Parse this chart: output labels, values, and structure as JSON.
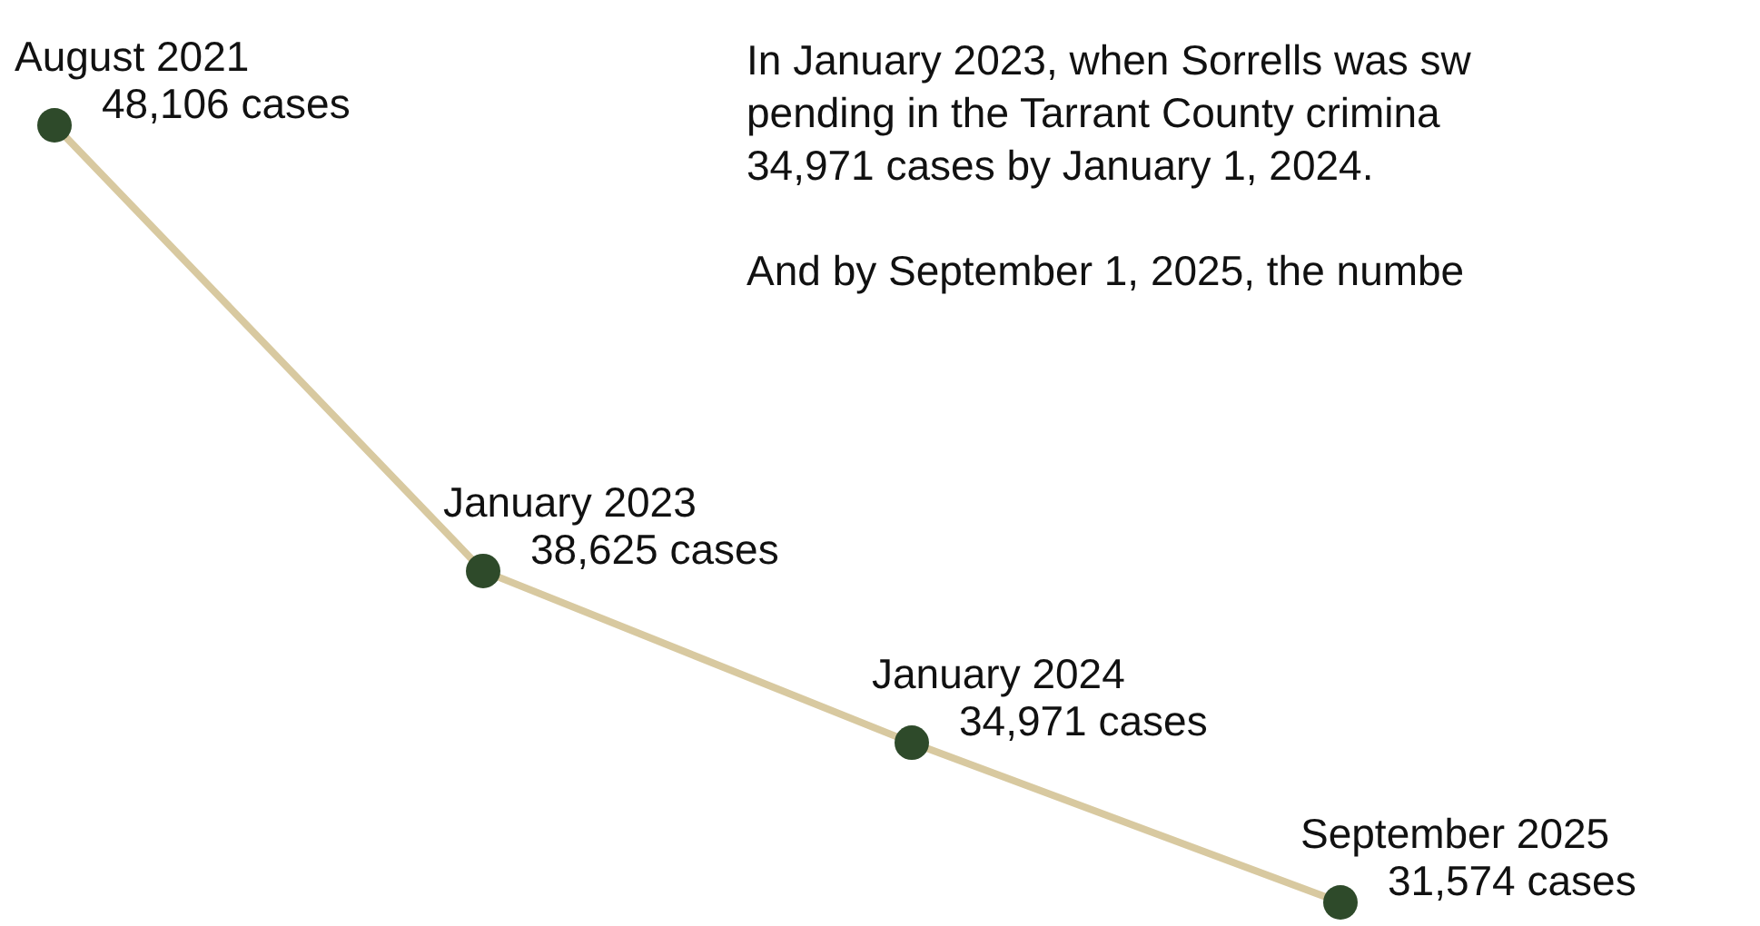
{
  "chart_data": {
    "type": "line",
    "categories": [
      "August 2021",
      "January 2023",
      "January 2024",
      "September 2025"
    ],
    "series": [
      {
        "color": "#d8c9a0",
        "values": [
          48106,
          38625,
          34971,
          31574
        ],
        "value_labels": [
          "48,106 cases",
          "38,625 cases",
          "34,971 cases",
          "31,574 cases"
        ]
      }
    ],
    "marker": "circle",
    "annotations": [
      "In January 2023, when Sorrells was sw",
      "pending in the Tarrant County crimina",
      "34,971 cases by January 1, 2024.",
      "And by September 1, 2025, the numbe"
    ]
  }
}
